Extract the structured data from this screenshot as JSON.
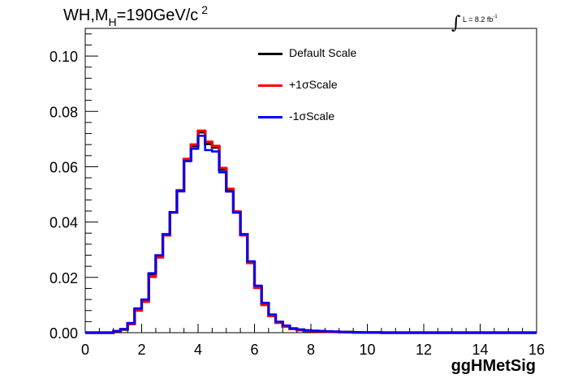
{
  "title": {
    "main": "WH,M",
    "sub": "H",
    "rest": "=190GeV/c",
    "sup": "2"
  },
  "lumi": {
    "integral": "∫",
    "text": "L = 8.2 fb",
    "sup": "-1"
  },
  "chart_data": {
    "type": "line",
    "xlabel": "ggHMetSig",
    "ylabel": "",
    "xlim": [
      0,
      16
    ],
    "ylim": [
      0,
      0.11
    ],
    "x_ticks": [
      "0",
      "2",
      "4",
      "6",
      "8",
      "10",
      "12",
      "14",
      "16"
    ],
    "y_ticks": [
      "0.00",
      "0.02",
      "0.04",
      "0.06",
      "0.08",
      "0.10"
    ],
    "bin_edges": [
      0,
      0.5,
      1,
      1.25,
      1.5,
      1.75,
      2,
      2.25,
      2.5,
      2.75,
      3,
      3.25,
      3.5,
      3.75,
      4,
      4.25,
      4.5,
      4.75,
      5,
      5.25,
      5.5,
      5.75,
      6,
      6.25,
      6.5,
      6.75,
      7,
      7.25,
      7.5,
      7.75,
      8,
      8.25,
      8.5,
      8.75,
      9,
      9.25,
      9.5,
      9.75,
      10,
      10.5,
      11,
      16
    ],
    "series": [
      {
        "name": "Default Scale",
        "color": "#000000",
        "values": [
          0,
          0,
          0.0005,
          0.0012,
          0.0032,
          0.0085,
          0.0118,
          0.0212,
          0.0278,
          0.0355,
          0.0435,
          0.0512,
          0.0625,
          0.0675,
          0.0725,
          0.0683,
          0.067,
          0.059,
          0.0515,
          0.0435,
          0.0355,
          0.0255,
          0.0165,
          0.0105,
          0.0062,
          0.0037,
          0.0023,
          0.0014,
          0.001,
          0.0007,
          0.0006,
          0.0005,
          0.0004,
          0.0003,
          0.0002,
          0.0002,
          0.0001,
          0.0001,
          0.0001,
          0,
          0
        ]
      },
      {
        "name": "+1σScale",
        "color": "#ff0000",
        "values": [
          0,
          0,
          0.0006,
          0.0013,
          0.0033,
          0.008,
          0.0112,
          0.0202,
          0.0272,
          0.0352,
          0.0435,
          0.0515,
          0.0628,
          0.068,
          0.073,
          0.069,
          0.0675,
          0.0595,
          0.052,
          0.0438,
          0.0352,
          0.0252,
          0.0162,
          0.01,
          0.006,
          0.0036,
          0.0022,
          0.0014,
          0.001,
          0.0007,
          0.0006,
          0.0005,
          0.0004,
          0.0003,
          0.0002,
          0.0002,
          0.0001,
          0.0001,
          0.0001,
          0,
          0
        ]
      },
      {
        "name": "-1σScale",
        "color": "#0000ff",
        "values": [
          0,
          0,
          0.0006,
          0.0013,
          0.0035,
          0.0088,
          0.012,
          0.0215,
          0.028,
          0.0355,
          0.0435,
          0.0512,
          0.062,
          0.0665,
          0.0712,
          0.066,
          0.0655,
          0.058,
          0.051,
          0.0435,
          0.0355,
          0.0258,
          0.017,
          0.0108,
          0.0066,
          0.004,
          0.0026,
          0.0016,
          0.0012,
          0.0009,
          0.0007,
          0.0006,
          0.0005,
          0.0004,
          0.0003,
          0.0002,
          0.0002,
          0.0001,
          0.0001,
          0,
          0
        ]
      }
    ],
    "grid": false,
    "legend_position": "top-center"
  }
}
